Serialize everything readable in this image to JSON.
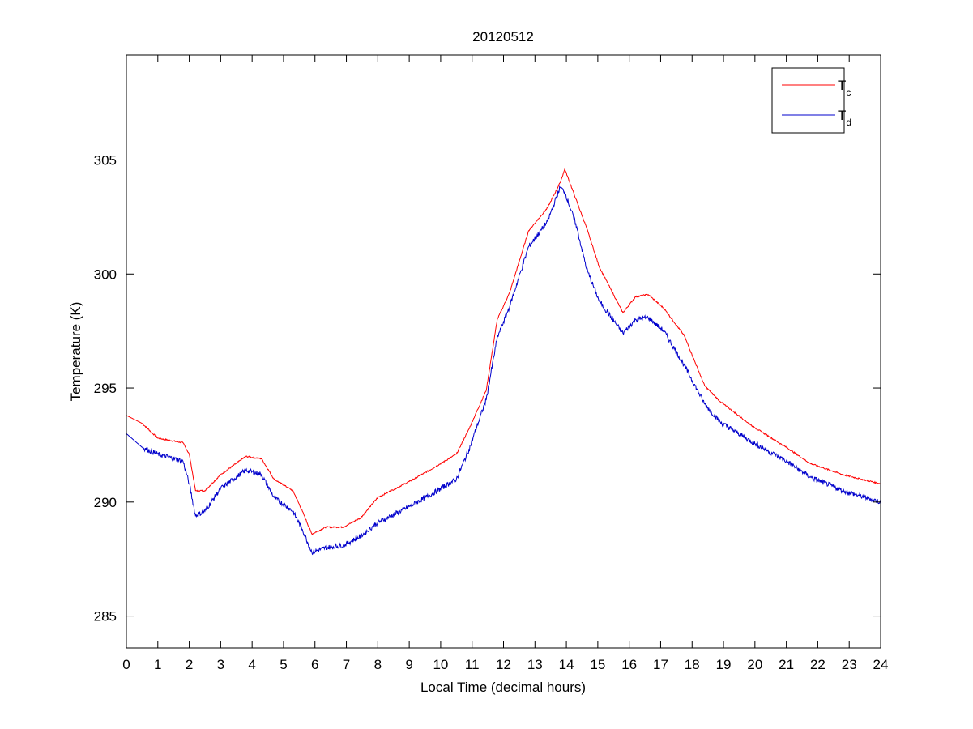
{
  "chart_data": {
    "type": "line",
    "title": "20120512",
    "xlabel": "Local Time (decimal hours)",
    "ylabel": "Temperature (K)",
    "xlim": [
      0,
      24
    ],
    "ylim": [
      283.6,
      309.6
    ],
    "xticks": [
      "0",
      "1",
      "2",
      "3",
      "4",
      "5",
      "6",
      "7",
      "8",
      "9",
      "10",
      "11",
      "12",
      "13",
      "14",
      "15",
      "16",
      "17",
      "18",
      "19",
      "20",
      "21",
      "22",
      "23",
      "24"
    ],
    "yticks": [
      "285",
      "290",
      "295",
      "300",
      "305"
    ],
    "grid": false,
    "legend_placement": "top-right",
    "x": [
      0,
      0.5,
      1,
      1.8,
      2,
      2.2,
      2.5,
      3,
      3.5,
      3.8,
      4.3,
      4.7,
      5.3,
      5.6,
      5.9,
      6.35,
      6.9,
      7.45,
      8,
      9,
      9.65,
      10.5,
      10.9,
      11.45,
      11.8,
      12.2,
      12.8,
      13.4,
      13.8,
      13.95,
      14.3,
      14.65,
      15.05,
      15.8,
      16.2,
      16.6,
      17.1,
      17.75,
      18.4,
      18.9,
      19.95,
      21,
      21.75,
      22.8,
      24
    ],
    "series": [
      {
        "name": "T",
        "subscript": "c",
        "color": "#ff0000",
        "values": [
          293.8,
          293.45,
          292.8,
          292.6,
          292.1,
          290.5,
          290.5,
          291.2,
          291.7,
          292.0,
          291.9,
          291.0,
          290.5,
          289.6,
          288.6,
          288.9,
          288.9,
          289.3,
          290.2,
          290.9,
          291.4,
          292.1,
          293.2,
          294.9,
          298.0,
          299.2,
          301.9,
          302.9,
          304.0,
          304.6,
          303.3,
          302.0,
          300.3,
          298.3,
          299.0,
          299.1,
          298.5,
          297.3,
          295.1,
          294.4,
          293.3,
          292.4,
          291.7,
          291.2,
          290.8
        ]
      },
      {
        "name": "T",
        "subscript": "d",
        "color": "#0000cc",
        "values": [
          293.0,
          292.4,
          292.1,
          291.8,
          290.8,
          289.4,
          289.6,
          290.6,
          291.1,
          291.4,
          291.2,
          290.2,
          289.6,
          288.8,
          287.8,
          288.0,
          288.1,
          288.5,
          289.1,
          289.8,
          290.3,
          291.0,
          292.3,
          294.5,
          297.2,
          298.6,
          301.2,
          302.3,
          303.8,
          303.6,
          302.2,
          300.2,
          298.8,
          297.4,
          298.0,
          298.1,
          297.5,
          296.0,
          294.3,
          293.5,
          292.6,
          291.8,
          291.1,
          290.5,
          290.0
        ]
      }
    ]
  }
}
